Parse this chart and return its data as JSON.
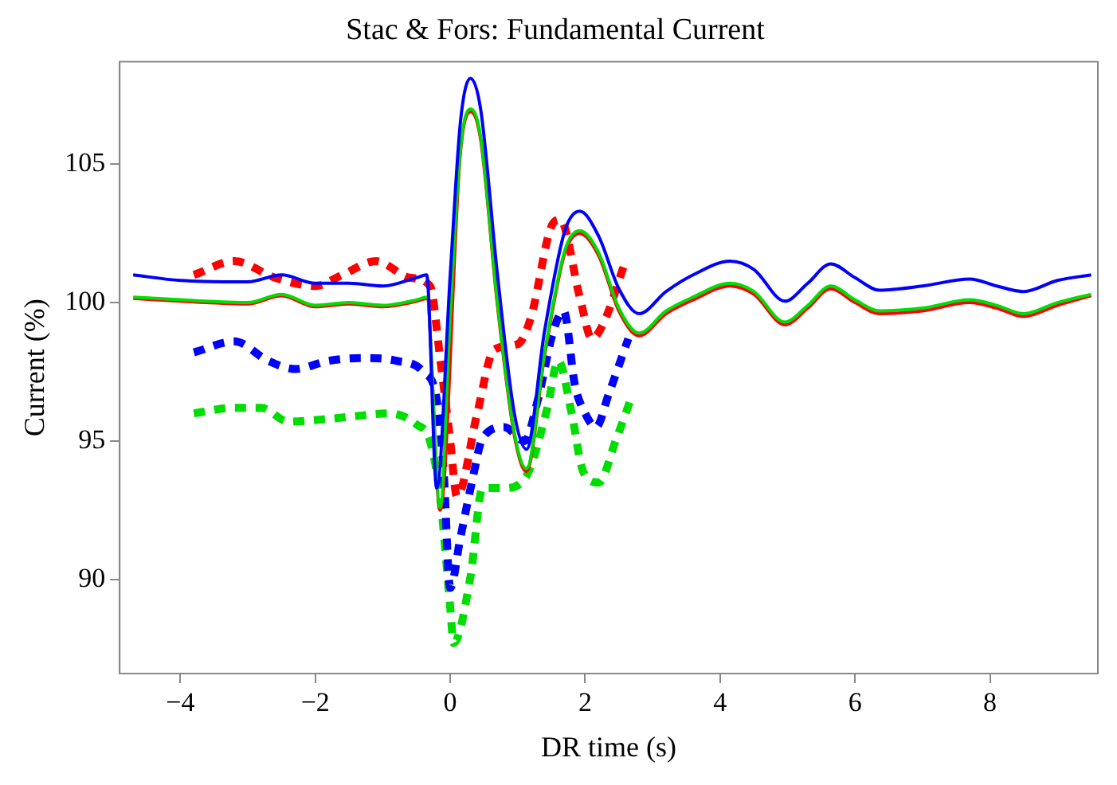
{
  "chart_data": {
    "type": "line",
    "title": "Stac & Fors: Fundamental Current",
    "xlabel": "DR time (s)",
    "ylabel": "Current (%)",
    "xlim": [
      -4.9,
      9.6
    ],
    "ylim": [
      86.6,
      108.7
    ],
    "xticks": [
      -4,
      -2,
      0,
      2,
      4,
      6,
      8
    ],
    "yticks": [
      90,
      95,
      100,
      105
    ],
    "grid": false,
    "legend": false,
    "marker": "none",
    "series": [
      {
        "color": "#0000ff",
        "line_style": "solid",
        "x": [
          -4.7,
          -4,
          -3,
          -2.5,
          -2,
          -1.5,
          -1,
          -0.5,
          -0.35,
          -0.2,
          0,
          0.15,
          0.3,
          0.45,
          0.7,
          0.95,
          1.13,
          1.4,
          1.7,
          1.92,
          2.2,
          2.5,
          2.8,
          3.2,
          3.6,
          4.15,
          4.5,
          4.96,
          5.3,
          5.64,
          6,
          6.36,
          7,
          7.7,
          8.1,
          8.5,
          9,
          9.5
        ],
        "values": [
          101.0,
          100.8,
          100.75,
          101.0,
          100.7,
          100.7,
          100.6,
          100.9,
          101.0,
          93.3,
          101.0,
          106.5,
          108.1,
          107.0,
          101.0,
          96.0,
          94.7,
          99.0,
          102.6,
          103.3,
          102.4,
          100.5,
          99.6,
          100.4,
          101.0,
          101.5,
          101.2,
          100.05,
          100.7,
          101.4,
          100.9,
          100.45,
          100.6,
          100.85,
          100.6,
          100.4,
          100.8,
          101.0
        ]
      },
      {
        "color": "#00dd00",
        "line_style": "solid",
        "x": [
          -4.7,
          -4,
          -3,
          -2.5,
          -2,
          -1.5,
          -1,
          -0.5,
          -0.35,
          -0.15,
          0,
          0.15,
          0.3,
          0.45,
          0.7,
          0.95,
          1.13,
          1.4,
          1.7,
          1.92,
          2.2,
          2.5,
          2.8,
          3.2,
          3.6,
          4.15,
          4.5,
          4.96,
          5.3,
          5.64,
          6,
          6.36,
          7,
          7.7,
          8.1,
          8.5,
          9,
          9.5
        ],
        "values": [
          100.2,
          100.1,
          100.0,
          100.3,
          99.9,
          100.0,
          99.9,
          100.1,
          100.2,
          92.6,
          99.5,
          105.5,
          107.0,
          106.0,
          100.0,
          95.3,
          94.0,
          98.2,
          101.9,
          102.6,
          101.8,
          99.8,
          98.9,
          99.7,
          100.2,
          100.7,
          100.4,
          99.3,
          99.9,
          100.6,
          100.1,
          99.7,
          99.8,
          100.1,
          99.9,
          99.6,
          100.0,
          100.3
        ]
      },
      {
        "color": "#ff0000",
        "line_style": "solid",
        "x": [
          -4.7,
          -4,
          -3,
          -2.5,
          -2,
          -1.5,
          -1,
          -0.5,
          -0.35,
          -0.15,
          0,
          0.15,
          0.3,
          0.45,
          0.7,
          0.95,
          1.13,
          1.4,
          1.7,
          1.92,
          2.2,
          2.5,
          2.8,
          3.2,
          3.6,
          4.15,
          4.5,
          4.96,
          5.3,
          5.64,
          6,
          6.36,
          7,
          7.7,
          8.1,
          8.5,
          9,
          9.5
        ],
        "values": [
          100.15,
          100.05,
          99.95,
          100.25,
          99.85,
          99.95,
          99.85,
          100.05,
          100.15,
          92.5,
          null,
          105.4,
          106.9,
          105.9,
          99.9,
          95.2,
          93.9,
          98.1,
          101.8,
          102.5,
          101.7,
          99.7,
          98.8,
          99.6,
          100.1,
          100.6,
          100.3,
          99.2,
          99.8,
          100.5,
          100.0,
          99.6,
          99.7,
          100.0,
          99.8,
          99.5,
          99.9,
          100.25
        ]
      },
      {
        "color": "#ff0000",
        "line_style": "dotted",
        "x": [
          -3.8,
          -3.2,
          -2.6,
          -2.0,
          -1.6,
          -1.1,
          -0.6,
          -0.3,
          -0.15,
          0,
          0.1,
          0.4,
          0.65,
          1.0,
          1.2,
          1.49,
          1.63,
          1.92,
          2.1,
          2.28,
          2.57
        ],
        "values": [
          101.0,
          101.5,
          100.9,
          100.6,
          101.0,
          101.5,
          100.9,
          100.6,
          98.0,
          95.0,
          93.0,
          96.0,
          98.3,
          98.5,
          99.5,
          102.7,
          103.0,
          100.2,
          98.7,
          99.3,
          101.3
        ]
      },
      {
        "color": "#0000ff",
        "line_style": "dotted",
        "x": [
          -3.8,
          -3.2,
          -2.7,
          -2.3,
          -1.8,
          -1.3,
          -0.8,
          -0.4,
          -0.2,
          -0.1,
          0,
          0.15,
          0.32,
          0.48,
          0.8,
          1.1,
          1.3,
          1.52,
          1.68,
          1.85,
          2.0,
          2.16,
          2.35,
          2.64
        ],
        "values": [
          98.2,
          98.6,
          97.9,
          97.6,
          97.9,
          98.0,
          97.9,
          97.5,
          96.5,
          94.0,
          89.7,
          91.5,
          93.5,
          95.1,
          95.5,
          95.0,
          96.5,
          98.9,
          99.7,
          97.0,
          96.0,
          95.5,
          96.7,
          98.7
        ]
      },
      {
        "color": "#00dd00",
        "line_style": "dotted",
        "x": [
          -3.8,
          -3.2,
          -2.8,
          -2.4,
          -1.8,
          -1.4,
          -0.9,
          -0.5,
          -0.3,
          -0.15,
          0,
          0.05,
          0.3,
          0.48,
          0.8,
          1.12,
          1.44,
          1.6,
          1.8,
          1.97,
          2.2,
          2.45,
          2.69
        ],
        "values": [
          96.0,
          96.2,
          96.2,
          95.7,
          95.8,
          95.9,
          96.0,
          95.6,
          95.0,
          93.0,
          89.0,
          87.7,
          90.1,
          93.3,
          93.3,
          93.7,
          96.2,
          97.9,
          96.0,
          93.9,
          93.5,
          95.0,
          96.6
        ]
      }
    ]
  }
}
